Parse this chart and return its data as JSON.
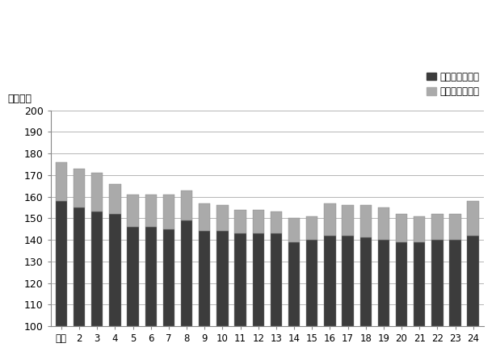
{
  "categories": [
    "平元",
    "2",
    "3",
    "4",
    "5",
    "6",
    "7",
    "8",
    "9",
    "10",
    "11",
    "12",
    "13",
    "14",
    "15",
    "16",
    "17",
    "18",
    "19",
    "20",
    "21",
    "22",
    "23",
    "24"
  ],
  "naikyu_total": [
    158,
    155,
    153,
    152,
    146,
    146,
    145,
    149,
    144,
    144,
    143,
    143,
    143,
    139,
    140,
    142,
    142,
    141,
    140,
    139,
    139,
    140,
    140,
    142
  ],
  "total": [
    176,
    173,
    171,
    166,
    161,
    161,
    161,
    163,
    157,
    156,
    154,
    154,
    153,
    150,
    151,
    157,
    156,
    156,
    155,
    152,
    151,
    152,
    152,
    158
  ],
  "color_naiku": "#3c3c3c",
  "color_gaiky": "#aaaaaa",
  "ylim_min": 100,
  "ylim_max": 200,
  "yticks": [
    100,
    110,
    120,
    130,
    140,
    150,
    160,
    170,
    180,
    190,
    200
  ],
  "ylabel": "〈時間〉",
  "legend_naiku": "所定内労働時間",
  "legend_gaiky": "所定外労働時間",
  "background_color": "#ffffff",
  "bar_width": 0.65
}
